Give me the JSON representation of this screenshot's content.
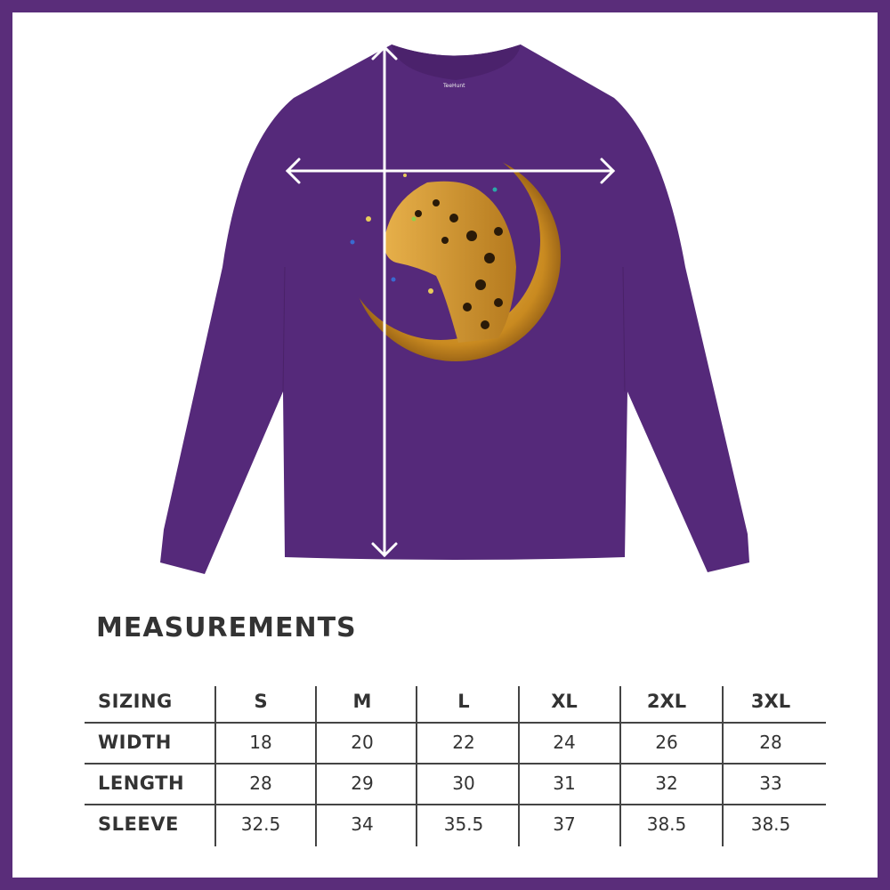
{
  "colors": {
    "frame": "#5a2d7a",
    "shirt": "#55297a",
    "gold": "#d9a030",
    "arrow": "#ffffff",
    "text": "#333333"
  },
  "product": {
    "label_brand": "TeeHunt",
    "garment": "long-sleeve shirt",
    "graphic": "leopard on crescent moon"
  },
  "measurements": {
    "title": "MEASUREMENTS",
    "header": {
      "label": "SIZING",
      "sizes": [
        "S",
        "M",
        "L",
        "XL",
        "2XL",
        "3XL"
      ]
    },
    "rows": [
      {
        "label": "WIDTH",
        "values": [
          "18",
          "20",
          "22",
          "24",
          "26",
          "28"
        ]
      },
      {
        "label": "LENGTH",
        "values": [
          "28",
          "29",
          "30",
          "31",
          "32",
          "33"
        ]
      },
      {
        "label": "SLEEVE",
        "values": [
          "32.5",
          "34",
          "35.5",
          "37",
          "38.5",
          "38.5"
        ]
      }
    ]
  }
}
